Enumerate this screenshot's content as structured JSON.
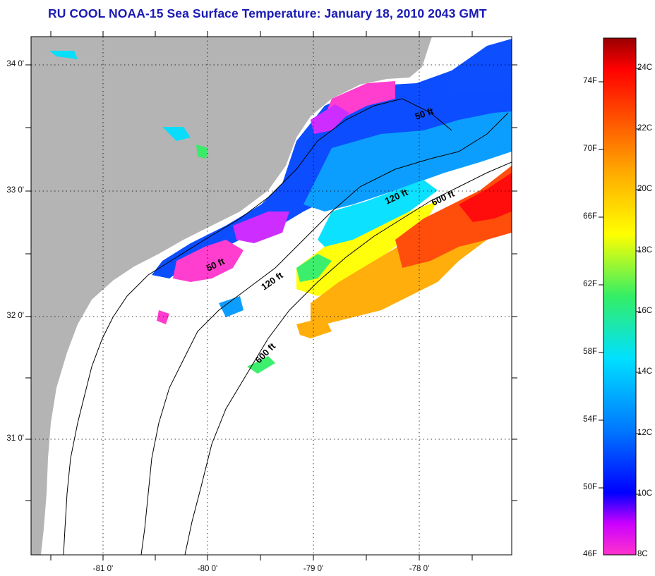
{
  "title": "RU COOL  NOAA-15  Sea Surface Temperature:  January 18, 2010 2043 GMT",
  "lat_labels": [
    "34 0'",
    "33 0'",
    "32 0'",
    "31 0'"
  ],
  "lon_labels": [
    "-81 0'",
    "-80 0'",
    "-79 0'",
    "-78 0'"
  ],
  "contours": [
    {
      "label": "50 ft",
      "depth_ft": 50
    },
    {
      "label": "50 ft",
      "depth_ft": 50
    },
    {
      "label": "120 ft",
      "depth_ft": 120
    },
    {
      "label": "120 ft",
      "depth_ft": 120
    },
    {
      "label": "600 ft",
      "depth_ft": 600
    },
    {
      "label": "600 ft",
      "depth_ft": 600
    }
  ],
  "colorbar": {
    "fahrenheit": [
      "74F",
      "70F",
      "66F",
      "62F",
      "58F",
      "54F",
      "50F",
      "46F"
    ],
    "celsius": [
      "24C",
      "22C",
      "20C",
      "18C",
      "16C",
      "14C",
      "12C",
      "10C",
      "8C"
    ],
    "range_c": [
      8,
      25
    ],
    "colors": [
      "#ff33cc",
      "#cc00ff",
      "#0000ff",
      "#0077ff",
      "#00e0ff",
      "#33ee66",
      "#ffff00",
      "#ffaa00",
      "#ff4400",
      "#ff0000",
      "#990000"
    ]
  },
  "colors": {
    "land": "#b4b4b4",
    "ocean": "#ffffff",
    "title": "#1a1ab4",
    "contour": "#000000"
  }
}
